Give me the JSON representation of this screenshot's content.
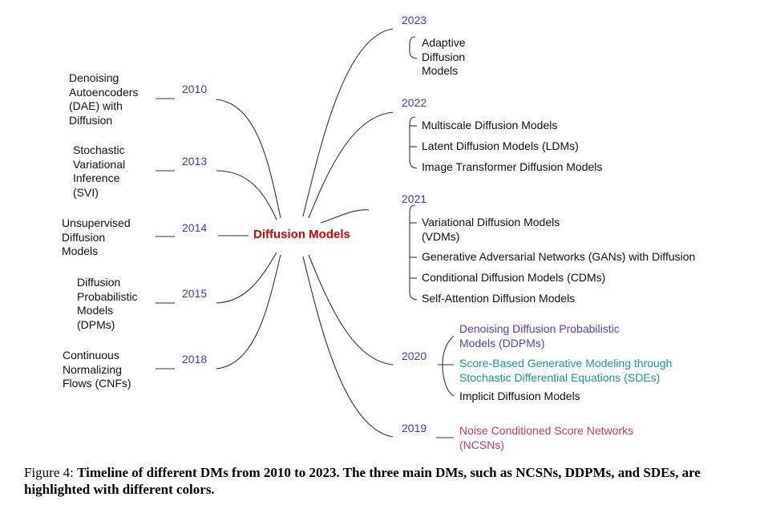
{
  "center": {
    "label": "Diffusion Models",
    "color": "#e00000"
  },
  "left": [
    {
      "year": "2010",
      "lines": [
        "Denoising",
        "Autoencoders",
        "(DAE) with",
        "Diffusion"
      ]
    },
    {
      "year": "2013",
      "lines": [
        "Stochastic",
        "Variational",
        "Inference",
        "(SVI)"
      ]
    },
    {
      "year": "2014",
      "lines": [
        "Unsupervised",
        "Diffusion",
        "Models"
      ]
    },
    {
      "year": "2015",
      "lines": [
        "Diffusion",
        "Probabilistic",
        "Models",
        "(DPMs)"
      ]
    },
    {
      "year": "2018",
      "lines": [
        "Continuous",
        "Normalizing",
        "Flows (CNFs)"
      ]
    }
  ],
  "right": [
    {
      "year": "2023",
      "items": [
        {
          "lines": [
            "Adaptive",
            "Diffusion",
            "Models"
          ]
        }
      ]
    },
    {
      "year": "2022",
      "items": [
        {
          "lines": [
            "Multiscale Diffusion Models"
          ]
        },
        {
          "lines": [
            "Latent Diffusion Models (LDMs)"
          ]
        },
        {
          "lines": [
            "Image Transformer Diffusion Models"
          ]
        }
      ]
    },
    {
      "year": "2021",
      "items": [
        {
          "lines": [
            "Variational Diffusion Models",
            "(VDMs)"
          ]
        },
        {
          "lines": [
            "Generative Adversarial Networks (GANs) with Diffusion"
          ]
        },
        {
          "lines": [
            "Conditional Diffusion Models (CDMs)"
          ]
        },
        {
          "lines": [
            "Self-Attention Diffusion Models"
          ]
        }
      ]
    },
    {
      "year": "2020",
      "items": [
        {
          "lines": [
            "Denoising Diffusion Probabilistic",
            "Models (DDPMs)"
          ],
          "color": "#5a3fb0"
        },
        {
          "lines": [
            "Score-Based Generative Modeling through",
            "Stochastic Differential Equations (SDEs)"
          ],
          "color": "#1a9a8a"
        },
        {
          "lines": [
            "Implicit Diffusion Models"
          ]
        }
      ]
    },
    {
      "year": "2019",
      "items": [
        {
          "lines": [
            "Noise Conditioned Score Networks",
            "(NCSNs)"
          ],
          "color": "#c03a6a"
        }
      ]
    }
  ],
  "caption": {
    "prefix": "Figure 4: ",
    "text": "Timeline of different DMs from 2010 to 2023. The three main DMs, such as NCSNs, DDPMs, and SDEs, are highlighted with different colors."
  },
  "colors": {
    "year": "#4b3aa6",
    "line": "#333333"
  }
}
